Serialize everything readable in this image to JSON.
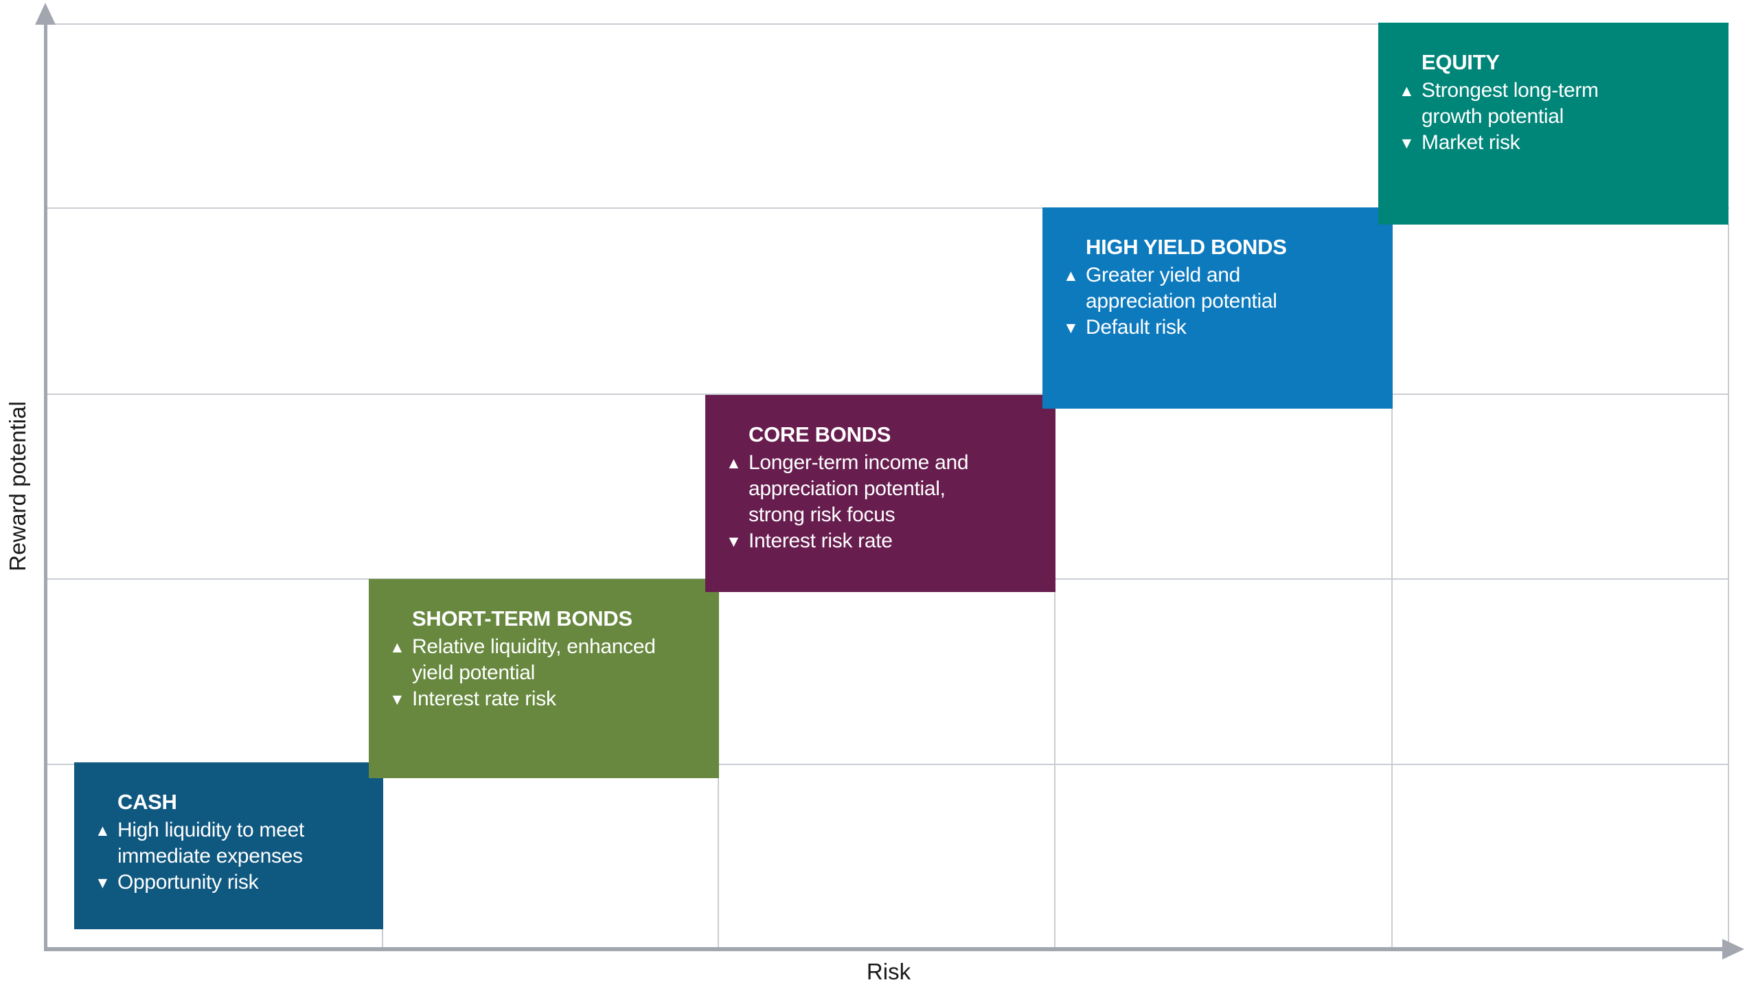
{
  "axes": {
    "x_label": "Risk",
    "y_label": "Reward potential",
    "axis_color": "#a2a7af",
    "gridline_color": "#c9cdd3",
    "label_color": "#1a1a1a"
  },
  "icons": {
    "up_triangle": "▲",
    "down_triangle": "▼"
  },
  "chart_data": {
    "type": "step",
    "title": "",
    "xlabel": "Risk",
    "ylabel": "Reward potential",
    "grid": true,
    "legend": false,
    "axis_scale": "qualitative, 5 equal steps from low to high",
    "categories": [
      "CASH",
      "SHORT-TERM BONDS",
      "CORE BONDS",
      "HIGH YIELD BONDS",
      "EQUITY"
    ],
    "risk_rank": [
      1,
      2,
      3,
      4,
      5
    ],
    "reward_rank": [
      1,
      2,
      3,
      4,
      5
    ],
    "steps": [
      {
        "title": "CASH",
        "color": "#0f5880",
        "pro": "High liquidity to meet immediate expenses",
        "con": "Opportunity risk",
        "pro_lines": [
          "High liquidity to meet",
          "immediate expenses"
        ],
        "con_lines": [
          "Opportunity risk"
        ]
      },
      {
        "title": "SHORT-TERM BONDS",
        "color": "#67883e",
        "pro": "Relative liquidity, enhanced yield potential",
        "con": "Interest rate risk",
        "pro_lines": [
          "Relative liquidity, enhanced",
          "yield potential"
        ],
        "con_lines": [
          "Interest rate risk"
        ]
      },
      {
        "title": "CORE BONDS",
        "color": "#671d4e",
        "pro": "Longer-term income and appreciation potential, strong risk focus",
        "con": "Interest risk rate",
        "pro_lines": [
          "Longer-term income and",
          "appreciation potential,",
          "strong risk focus"
        ],
        "con_lines": [
          "Interest risk rate"
        ]
      },
      {
        "title": "HIGH YIELD BONDS",
        "color": "#0d7abe",
        "pro": "Greater yield and appreciation potential",
        "con": "Default risk",
        "pro_lines": [
          "Greater yield and",
          "appreciation potential"
        ],
        "con_lines": [
          "Default risk"
        ]
      },
      {
        "title": "EQUITY",
        "color": "#008579",
        "pro": "Strongest long-term growth potential",
        "con": "Market risk",
        "pro_lines": [
          "Strongest long-term",
          "growth potential"
        ],
        "con_lines": [
          "Market risk"
        ]
      }
    ]
  }
}
